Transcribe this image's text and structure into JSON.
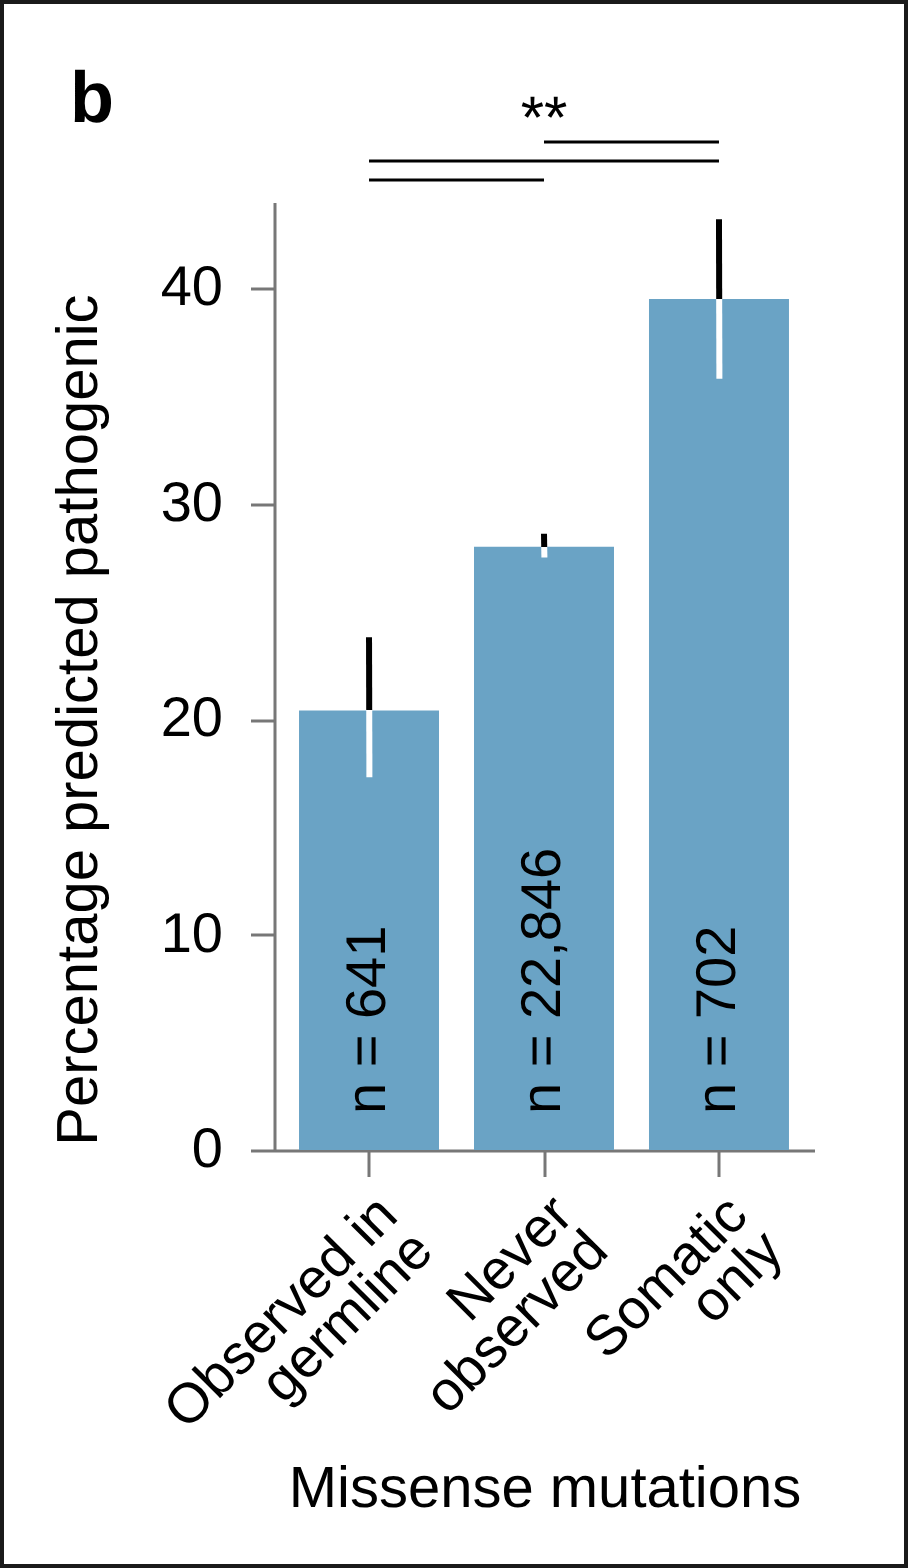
{
  "chart_data": {
    "type": "bar",
    "title": "b",
    "xlabel": "Missense mutations",
    "ylabel": "Percentage predicted pathogenic",
    "categories": [
      "Observed in germline",
      "Never observed",
      "Somatic only"
    ],
    "values": [
      20.4,
      28.0,
      39.5
    ],
    "errors": [
      [
        17.3,
        23.8
      ],
      [
        27.5,
        28.6
      ],
      [
        35.8,
        43.2
      ]
    ],
    "color": "#6aa3c5",
    "ylim": [
      0,
      44
    ],
    "yticks": [
      0,
      10,
      20,
      30,
      40
    ],
    "annotations": [
      "**",
      "n = 641",
      "n = 22,846",
      "n = 702"
    ]
  }
}
